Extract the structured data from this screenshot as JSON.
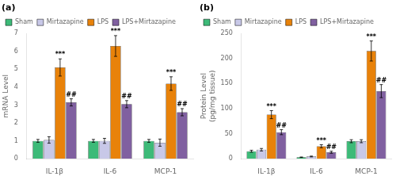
{
  "chart_data": [
    {
      "type": "bar",
      "title": "(a)",
      "ylabel": "mRNA Level",
      "categories": [
        "IL-1β",
        "IL-6",
        "MCP-1"
      ],
      "series": [
        {
          "name": "Sham",
          "color": "#3dba78",
          "values": [
            1.0,
            1.0,
            1.0
          ],
          "errors": [
            0.08,
            0.08,
            0.08
          ]
        },
        {
          "name": "Mirtazapine",
          "color": "#c8c8e8",
          "values": [
            1.05,
            1.0,
            0.9
          ],
          "errors": [
            0.18,
            0.14,
            0.2
          ]
        },
        {
          "name": "LPS",
          "color": "#e8820a",
          "values": [
            5.1,
            6.3,
            4.2
          ],
          "errors": [
            0.48,
            0.58,
            0.38
          ]
        },
        {
          "name": "LPS+Mirtazapine",
          "color": "#8060a0",
          "values": [
            3.15,
            3.05,
            2.6
          ],
          "errors": [
            0.2,
            0.2,
            0.2
          ]
        }
      ],
      "annotations": [
        {
          "text": "***",
          "series": "LPS",
          "category": "IL-1β"
        },
        {
          "text": "***",
          "series": "LPS",
          "category": "IL-6"
        },
        {
          "text": "***",
          "series": "LPS",
          "category": "MCP-1"
        },
        {
          "text": "##",
          "series": "LPS+Mirtazapine",
          "category": "IL-1β"
        },
        {
          "text": "##",
          "series": "LPS+Mirtazapine",
          "category": "IL-6"
        },
        {
          "text": "##",
          "series": "LPS+Mirtazapine",
          "category": "MCP-1"
        }
      ],
      "ylim": [
        0,
        7
      ],
      "yticks": [
        0,
        1,
        2,
        3,
        4,
        5,
        6,
        7
      ],
      "grid": false,
      "legend": "upper left"
    },
    {
      "type": "bar",
      "title": "(b)",
      "ylabel": "Protein Level\n(pg/mg tissue)",
      "categories": [
        "IL-1β",
        "IL-6",
        "MCP-1"
      ],
      "series": [
        {
          "name": "Sham",
          "color": "#3dba78",
          "values": [
            15.0,
            3.0,
            35.0
          ],
          "errors": [
            2.0,
            0.5,
            3.0
          ]
        },
        {
          "name": "Mirtazapine",
          "color": "#c8c8e8",
          "values": [
            18.0,
            4.5,
            35.0
          ],
          "errors": [
            2.5,
            0.8,
            3.0
          ]
        },
        {
          "name": "LPS",
          "color": "#e8820a",
          "values": [
            88.0,
            25.0,
            215.0
          ],
          "errors": [
            8.0,
            3.0,
            20.0
          ]
        },
        {
          "name": "LPS+Mirtazapine",
          "color": "#8060a0",
          "values": [
            53.0,
            13.0,
            135.0
          ],
          "errors": [
            5.0,
            2.0,
            13.0
          ]
        }
      ],
      "annotations": [
        {
          "text": "***",
          "series": "LPS",
          "category": "IL-1β"
        },
        {
          "text": "***",
          "series": "LPS",
          "category": "IL-6"
        },
        {
          "text": "***",
          "series": "LPS",
          "category": "MCP-1"
        },
        {
          "text": "##",
          "series": "LPS+Mirtazapine",
          "category": "IL-1β"
        },
        {
          "text": "##",
          "series": "LPS+Mirtazapine",
          "category": "IL-6"
        },
        {
          "text": "##",
          "series": "LPS+Mirtazapine",
          "category": "MCP-1"
        }
      ],
      "ylim": [
        0,
        250
      ],
      "yticks": [
        0,
        50,
        100,
        150,
        200,
        250
      ],
      "grid": false,
      "legend": "upper left"
    }
  ]
}
